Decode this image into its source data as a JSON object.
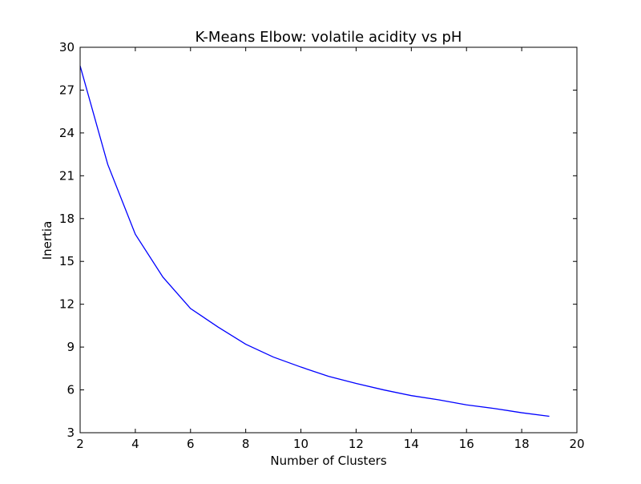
{
  "chart_data": {
    "type": "line",
    "title": "K-Means Elbow: volatile acidity vs pH",
    "xlabel": "Number of Clusters",
    "ylabel": "Inertia",
    "xlim": [
      2,
      20
    ],
    "ylim": [
      3,
      30
    ],
    "xticks": [
      2,
      4,
      6,
      8,
      10,
      12,
      14,
      16,
      18,
      20
    ],
    "yticks": [
      3,
      6,
      9,
      12,
      15,
      18,
      21,
      24,
      27,
      30
    ],
    "grid": false,
    "legend": "none",
    "series": [
      {
        "color": "#0000ff",
        "x": [
          2,
          3,
          4,
          5,
          6,
          7,
          8,
          9,
          10,
          11,
          12,
          13,
          14,
          15,
          16,
          17,
          18,
          19
        ],
        "y": [
          28.7,
          21.8,
          16.9,
          13.9,
          11.7,
          10.4,
          9.2,
          8.3,
          7.6,
          6.95,
          6.45,
          6.0,
          5.6,
          5.3,
          4.95,
          4.7,
          4.4,
          4.15
        ]
      }
    ]
  }
}
